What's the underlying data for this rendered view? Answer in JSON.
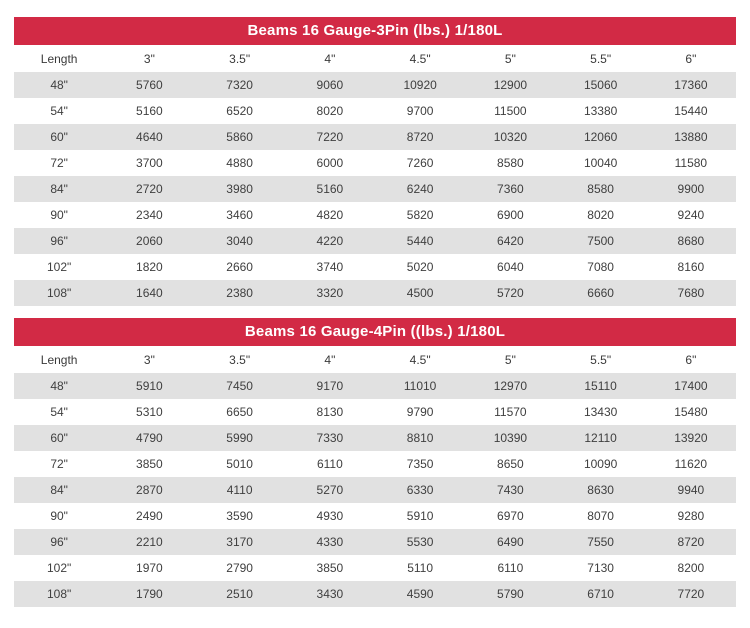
{
  "page": {
    "accent_red": "#d22a45",
    "stripe_gray": "#e1e1e1"
  },
  "tables": [
    {
      "title": "Beams 16 Gauge-3Pin (lbs.) 1/180L",
      "columns": [
        "Length",
        "3\"",
        "3.5\"",
        "4\"",
        "4.5\"",
        "5\"",
        "5.5\"",
        "6\""
      ],
      "rows": [
        [
          "48\"",
          "5760",
          "7320",
          "9060",
          "10920",
          "12900",
          "15060",
          "17360"
        ],
        [
          "54\"",
          "5160",
          "6520",
          "8020",
          "9700",
          "11500",
          "13380",
          "15440"
        ],
        [
          "60\"",
          "4640",
          "5860",
          "7220",
          "8720",
          "10320",
          "12060",
          "13880"
        ],
        [
          "72\"",
          "3700",
          "4880",
          "6000",
          "7260",
          "8580",
          "10040",
          "11580"
        ],
        [
          "84\"",
          "2720",
          "3980",
          "5160",
          "6240",
          "7360",
          "8580",
          "9900"
        ],
        [
          "90\"",
          "2340",
          "3460",
          "4820",
          "5820",
          "6900",
          "8020",
          "9240"
        ],
        [
          "96\"",
          "2060",
          "3040",
          "4220",
          "5440",
          "6420",
          "7500",
          "8680"
        ],
        [
          "102\"",
          "1820",
          "2660",
          "3740",
          "5020",
          "6040",
          "7080",
          "8160"
        ],
        [
          "108\"",
          "1640",
          "2380",
          "3320",
          "4500",
          "5720",
          "6660",
          "7680"
        ]
      ]
    },
    {
      "title": "Beams 16 Gauge-4Pin ((lbs.) 1/180L",
      "columns": [
        "Length",
        "3\"",
        "3.5\"",
        "4\"",
        "4.5\"",
        "5\"",
        "5.5\"",
        "6\""
      ],
      "rows": [
        [
          "48\"",
          "5910",
          "7450",
          "9170",
          "11010",
          "12970",
          "15110",
          "17400"
        ],
        [
          "54\"",
          "5310",
          "6650",
          "8130",
          "9790",
          "11570",
          "13430",
          "15480"
        ],
        [
          "60\"",
          "4790",
          "5990",
          "7330",
          "8810",
          "10390",
          "12110",
          "13920"
        ],
        [
          "72\"",
          "3850",
          "5010",
          "6110",
          "7350",
          "8650",
          "10090",
          "11620"
        ],
        [
          "84\"",
          "2870",
          "4110",
          "5270",
          "6330",
          "7430",
          "8630",
          "9940"
        ],
        [
          "90\"",
          "2490",
          "3590",
          "4930",
          "5910",
          "6970",
          "8070",
          "9280"
        ],
        [
          "96\"",
          "2210",
          "3170",
          "4330",
          "5530",
          "6490",
          "7550",
          "8720"
        ],
        [
          "102\"",
          "1970",
          "2790",
          "3850",
          "5110",
          "6110",
          "7130",
          "8200"
        ],
        [
          "108\"",
          "1790",
          "2510",
          "3430",
          "4590",
          "5790",
          "6710",
          "7720"
        ]
      ]
    }
  ]
}
